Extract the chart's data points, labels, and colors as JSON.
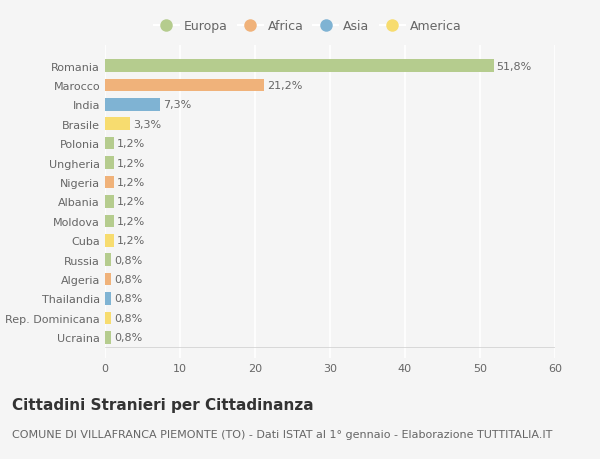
{
  "categories": [
    "Romania",
    "Marocco",
    "India",
    "Brasile",
    "Polonia",
    "Ungheria",
    "Nigeria",
    "Albania",
    "Moldova",
    "Cuba",
    "Russia",
    "Algeria",
    "Thailandia",
    "Rep. Dominicana",
    "Ucraina"
  ],
  "values": [
    51.8,
    21.2,
    7.3,
    3.3,
    1.2,
    1.2,
    1.2,
    1.2,
    1.2,
    1.2,
    0.8,
    0.8,
    0.8,
    0.8,
    0.8
  ],
  "labels": [
    "51,8%",
    "21,2%",
    "7,3%",
    "3,3%",
    "1,2%",
    "1,2%",
    "1,2%",
    "1,2%",
    "1,2%",
    "1,2%",
    "0,8%",
    "0,8%",
    "0,8%",
    "0,8%",
    "0,8%"
  ],
  "continents": [
    "Europa",
    "Africa",
    "Asia",
    "America",
    "Europa",
    "Europa",
    "Africa",
    "Europa",
    "Europa",
    "America",
    "Europa",
    "Africa",
    "Asia",
    "America",
    "Europa"
  ],
  "continent_colors": {
    "Europa": "#b5cc8e",
    "Africa": "#f0b27a",
    "Asia": "#7fb3d3",
    "America": "#f7dc6f"
  },
  "legend_order": [
    "Europa",
    "Africa",
    "Asia",
    "America"
  ],
  "title": "Cittadini Stranieri per Cittadinanza",
  "subtitle": "COMUNE DI VILLAFRANCA PIEMONTE (TO) - Dati ISTAT al 1° gennaio - Elaborazione TUTTITALIA.IT",
  "xlim": [
    0,
    60
  ],
  "xticks": [
    0,
    10,
    20,
    30,
    40,
    50,
    60
  ],
  "background_color": "#f5f5f5",
  "bar_height": 0.65,
  "title_fontsize": 11,
  "subtitle_fontsize": 8,
  "label_fontsize": 8,
  "tick_fontsize": 8,
  "legend_fontsize": 9
}
